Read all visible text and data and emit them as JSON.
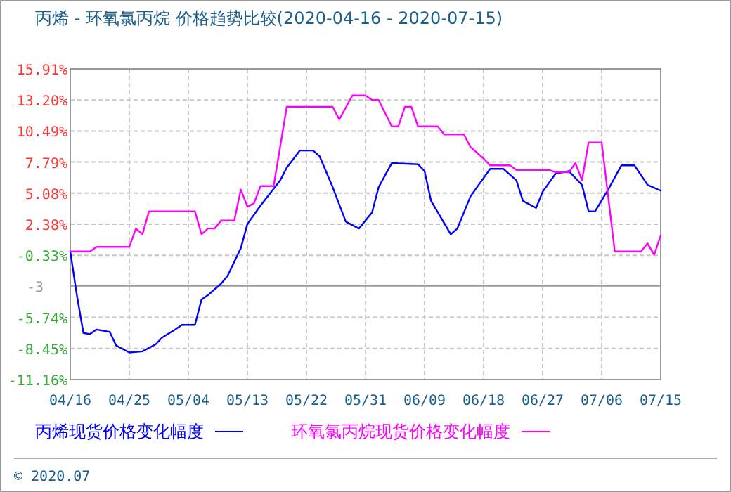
{
  "chart_data": {
    "type": "line",
    "title": "丙烯 - 环氧氯丙烷 价格趋势比较(2020-04-16 - 2020-07-15)",
    "xlim": [
      "--04-16",
      "--07-15"
    ],
    "xticks": [
      {
        "value": "--04-16",
        "label": "04/16"
      },
      {
        "value": "--04-25",
        "label": "04/25"
      },
      {
        "value": "--05-04",
        "label": "05/04"
      },
      {
        "value": "--05-13",
        "label": "05/13"
      },
      {
        "value": "--05-22",
        "label": "05/22"
      },
      {
        "value": "--05-31",
        "label": "05/31"
      },
      {
        "value": "--06-09",
        "label": "06/09"
      },
      {
        "value": "--06-18",
        "label": "06/18"
      },
      {
        "value": "--06-27",
        "label": "06/27"
      },
      {
        "value": "--07-06",
        "label": "07/06"
      },
      {
        "value": "--07-15",
        "label": "07/15"
      }
    ],
    "ylim": [
      -11.16,
      15.91
    ],
    "yticks": [
      {
        "value": 15.91,
        "label": "15.91%"
      },
      {
        "value": 13.2,
        "label": "13.20%"
      },
      {
        "value": 10.49,
        "label": "10.49%"
      },
      {
        "value": 7.79,
        "label": "7.79%"
      },
      {
        "value": 5.08,
        "label": "5.08%"
      },
      {
        "value": 2.38,
        "label": "2.38%"
      },
      {
        "value": -0.33,
        "label": "-0.33%"
      },
      {
        "value": -5.74,
        "label": "-5.74%"
      },
      {
        "value": -8.45,
        "label": "-8.45%"
      },
      {
        "value": -11.16,
        "label": "-11.16%"
      }
    ],
    "ref_lines": [
      {
        "axis": "y",
        "value": -3,
        "label": "-3",
        "color": "#999999",
        "line_style": "solid"
      }
    ],
    "grid": true,
    "legend": "bottom",
    "marker": "none",
    "line_style": "solid",
    "annotations": [
      "© 2020.07"
    ],
    "series": [
      {
        "name": "丙烯现货价格变化幅度",
        "color": "#0000ff",
        "x": [
          "--04-16",
          "--04-17",
          "--04-18",
          "--04-19",
          "--04-20",
          "--04-22",
          "--04-23",
          "--04-25",
          "--04-27",
          "--04-29",
          "--04-30",
          "--05-02",
          "--05-03",
          "--05-05",
          "--05-06",
          "--05-07",
          "--05-09",
          "--05-10",
          "--05-12",
          "--05-13",
          "--05-15",
          "--05-18",
          "--05-19",
          "--05-21",
          "--05-23",
          "--05-24",
          "--05-26",
          "--05-28",
          "--05-30",
          "--06-01",
          "--06-02",
          "--06-04",
          "--06-08",
          "--06-09",
          "--06-10",
          "--06-13",
          "--06-14",
          "--06-16",
          "--06-19",
          "--06-21",
          "--06-23",
          "--06-24",
          "--06-26",
          "--06-27",
          "--06-29",
          "--07-01",
          "--07-03",
          "--07-04",
          "--07-05",
          "--07-07",
          "--07-09",
          "--07-11",
          "--07-13",
          "--07-15"
        ],
        "values": [
          0,
          -3.8,
          -7.1,
          -7.2,
          -6.8,
          -7.0,
          -8.2,
          -8.8,
          -8.7,
          -8.1,
          -7.5,
          -6.8,
          -6.4,
          -6.4,
          -4.2,
          -3.8,
          -2.8,
          -2.1,
          0.3,
          2.4,
          4.0,
          6.2,
          7.3,
          8.8,
          8.8,
          8.3,
          5.6,
          2.6,
          2.0,
          3.4,
          5.6,
          7.7,
          7.6,
          7.0,
          4.4,
          1.5,
          2.0,
          4.8,
          7.2,
          7.2,
          6.2,
          4.4,
          3.8,
          5.2,
          6.8,
          7.0,
          5.8,
          3.5,
          3.5,
          5.4,
          7.5,
          7.5,
          5.8,
          5.3
        ]
      },
      {
        "name": "环氧氯丙烷现货价格变化幅度",
        "color": "#ff00ff",
        "x": [
          "--04-16",
          "--04-19",
          "--04-20",
          "--04-25",
          "--04-26",
          "--04-27",
          "--04-28",
          "--05-05",
          "--05-06",
          "--05-07",
          "--05-08",
          "--05-09",
          "--05-11",
          "--05-12",
          "--05-13",
          "--05-14",
          "--05-15",
          "--05-17",
          "--05-19",
          "--05-26",
          "--05-27",
          "--05-29",
          "--05-31",
          "--06-01",
          "--06-02",
          "--06-04",
          "--06-05",
          "--06-06",
          "--06-07",
          "--06-08",
          "--06-11",
          "--06-12",
          "--06-15",
          "--06-16",
          "--06-18",
          "--06-19",
          "--06-22",
          "--06-23",
          "--06-28",
          "--06-29",
          "--07-01",
          "--07-02",
          "--07-03",
          "--07-04",
          "--07-06",
          "--07-08",
          "--07-12",
          "--07-13",
          "--07-14",
          "--07-15"
        ],
        "values": [
          0,
          0,
          0.4,
          0.4,
          2.0,
          1.5,
          3.5,
          3.5,
          1.5,
          2.0,
          2.0,
          2.7,
          2.7,
          5.4,
          3.9,
          4.2,
          5.7,
          5.7,
          12.6,
          12.6,
          11.5,
          13.6,
          13.6,
          13.2,
          13.2,
          10.9,
          10.9,
          12.6,
          12.6,
          10.9,
          10.9,
          10.2,
          10.2,
          9.1,
          8.1,
          7.5,
          7.5,
          7.1,
          7.1,
          6.9,
          6.9,
          7.7,
          6.2,
          9.5,
          9.5,
          0,
          0,
          0.7,
          -0.3,
          1.4
        ]
      }
    ]
  }
}
